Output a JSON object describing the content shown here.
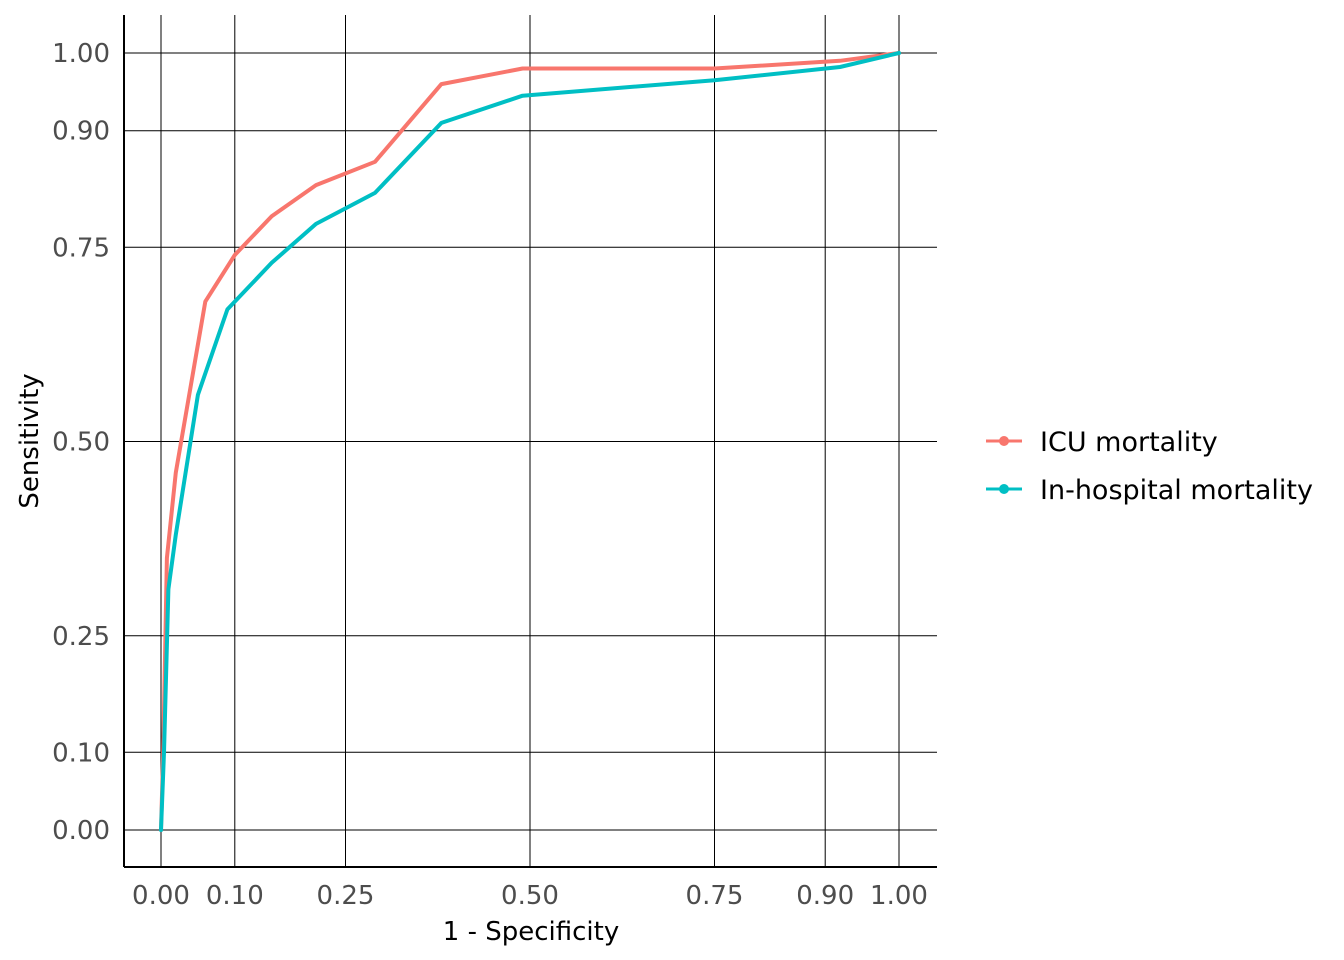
{
  "chart_data": {
    "type": "line",
    "xlabel": "1 - Specificity",
    "ylabel": "Sensitivity",
    "xlim": [
      -0.05,
      1.05
    ],
    "ylim": [
      -0.05,
      1.05
    ],
    "x_ticks": [
      0.0,
      0.1,
      0.25,
      0.5,
      0.75,
      0.9,
      1.0
    ],
    "x_tick_labels": [
      "0.00",
      "0.10",
      "0.25",
      "0.50",
      "0.75",
      "0.90",
      "1.00"
    ],
    "y_ticks": [
      0.0,
      0.1,
      0.25,
      0.5,
      0.75,
      0.9,
      1.0
    ],
    "y_tick_labels": [
      "0.00",
      "0.10",
      "0.25",
      "0.50",
      "0.75",
      "0.90",
      "1.00"
    ],
    "grid": true,
    "legend_position": "right",
    "series": [
      {
        "name": "ICU mortality",
        "color": "#F8766D",
        "points": [
          [
            0.0,
            0.0
          ],
          [
            0.003,
            0.1
          ],
          [
            0.008,
            0.35
          ],
          [
            0.02,
            0.46
          ],
          [
            0.06,
            0.68
          ],
          [
            0.1,
            0.74
          ],
          [
            0.15,
            0.79
          ],
          [
            0.21,
            0.83
          ],
          [
            0.29,
            0.86
          ],
          [
            0.38,
            0.96
          ],
          [
            0.49,
            0.98
          ],
          [
            0.75,
            0.98
          ],
          [
            0.92,
            0.99
          ],
          [
            1.0,
            1.0
          ]
        ]
      },
      {
        "name": "In-hospital mortality",
        "color": "#00BFC4",
        "points": [
          [
            0.0,
            0.0
          ],
          [
            0.004,
            0.1
          ],
          [
            0.01,
            0.31
          ],
          [
            0.02,
            0.38
          ],
          [
            0.05,
            0.56
          ],
          [
            0.09,
            0.67
          ],
          [
            0.15,
            0.73
          ],
          [
            0.21,
            0.78
          ],
          [
            0.29,
            0.82
          ],
          [
            0.38,
            0.91
          ],
          [
            0.49,
            0.945
          ],
          [
            0.75,
            0.965
          ],
          [
            0.92,
            0.982
          ],
          [
            1.0,
            1.0
          ]
        ]
      }
    ]
  }
}
